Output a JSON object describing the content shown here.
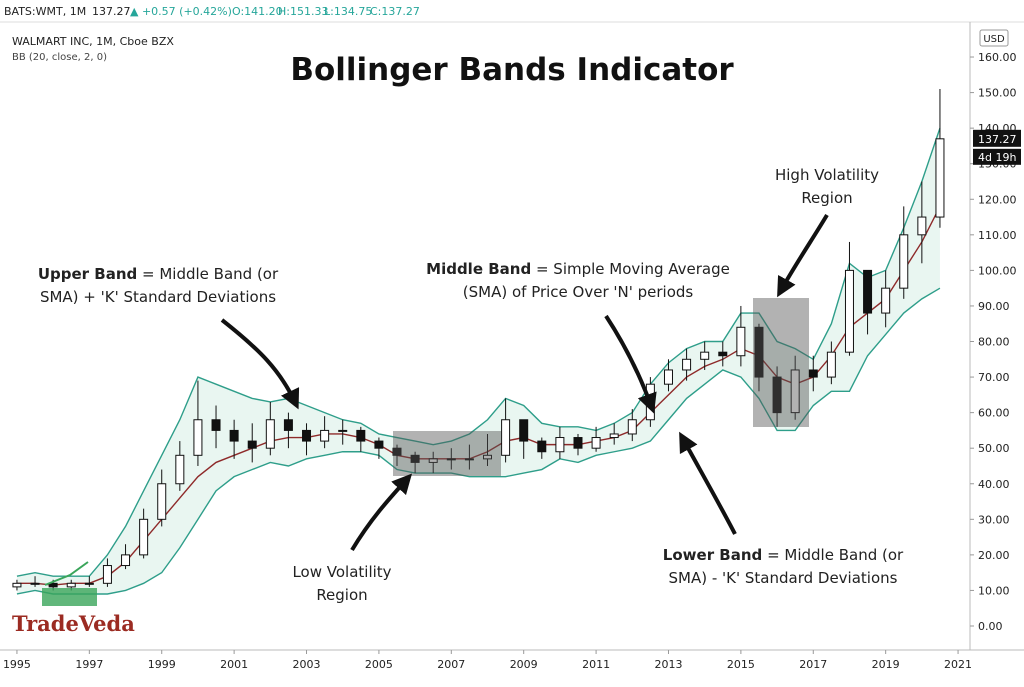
{
  "header": {
    "symbol": "BATS:WMT, 1M",
    "last": "137.27",
    "change": "▲ +0.57 (+0.42%)",
    "ohlc": [
      "O:141.20",
      "H:151.33",
      "L:134.75",
      "C:137.27"
    ]
  },
  "chart_data": {
    "type": "candlestick",
    "title": "Bollinger Bands Indicator",
    "instrument": "WALMART INC, 1M, Cboe BZX",
    "indicator": "BB (20, close, 2, 0)",
    "currency": "USD",
    "price_label": "137.27",
    "countdown": "4d 19h",
    "watermark": "TradeVeda",
    "x": [
      1995,
      1995.5,
      1996,
      1996.5,
      1997,
      1997.5,
      1998,
      1998.5,
      1999,
      1999.5,
      2000,
      2000.5,
      2001,
      2001.5,
      2002,
      2002.5,
      2003,
      2003.5,
      2004,
      2004.5,
      2005,
      2005.5,
      2006,
      2006.5,
      2007,
      2007.5,
      2008,
      2008.5,
      2009,
      2009.5,
      2010,
      2010.5,
      2011,
      2011.5,
      2012,
      2012.5,
      2013,
      2013.5,
      2014,
      2014.5,
      2015,
      2015.5,
      2016,
      2016.5,
      2017,
      2017.5,
      2018,
      2018.5,
      2019,
      2019.5,
      2020,
      2020.5
    ],
    "candles": {
      "open": [
        11,
        12,
        12,
        11,
        12,
        12,
        17,
        20,
        30,
        40,
        48,
        58,
        55,
        52,
        50,
        58,
        55,
        52,
        55,
        55,
        52,
        50,
        48,
        46,
        47,
        47,
        47,
        48,
        58,
        52,
        49,
        53,
        50,
        53,
        54,
        58,
        68,
        72,
        75,
        77,
        76,
        84,
        70,
        60,
        72,
        70,
        77,
        100,
        88,
        95,
        110,
        115
      ],
      "high": [
        13,
        14,
        13,
        13,
        14,
        19,
        23,
        33,
        44,
        52,
        69,
        62,
        58,
        57,
        63,
        60,
        57,
        59,
        58,
        56,
        53,
        51,
        49,
        49,
        50,
        51,
        54,
        64,
        57,
        53,
        56,
        54,
        56,
        57,
        61,
        70,
        75,
        78,
        80,
        80,
        90,
        85,
        73,
        76,
        76,
        80,
        108,
        100,
        100,
        118,
        125,
        151
      ],
      "low": [
        10,
        11,
        10,
        10,
        11,
        11,
        16,
        19,
        28,
        38,
        45,
        50,
        47,
        46,
        48,
        50,
        48,
        50,
        51,
        49,
        47,
        45,
        43,
        43,
        44,
        44,
        45,
        46,
        47,
        47,
        47,
        48,
        49,
        51,
        52,
        56,
        66,
        69,
        72,
        73,
        73,
        66,
        56,
        58,
        66,
        68,
        76,
        82,
        84,
        92,
        102,
        112
      ],
      "close": [
        12,
        12,
        11,
        12,
        12,
        17,
        20,
        30,
        40,
        48,
        58,
        55,
        52,
        50,
        58,
        55,
        52,
        55,
        55,
        52,
        50,
        48,
        46,
        47,
        47,
        47,
        48,
        58,
        52,
        49,
        53,
        50,
        53,
        54,
        58,
        68,
        72,
        75,
        77,
        76,
        84,
        70,
        60,
        72,
        70,
        77,
        100,
        88,
        95,
        110,
        115,
        137
      ],
      "up_color": "#ffffff",
      "down_color": "#111111"
    },
    "bands": {
      "fill": "#e9f6f1",
      "upper": {
        "color": "#2e9e8a",
        "values": [
          14,
          15,
          14,
          14,
          14,
          20,
          28,
          38,
          48,
          58,
          70,
          68,
          66,
          64,
          63,
          64,
          62,
          60,
          58,
          57,
          54,
          53,
          52,
          51,
          52,
          54,
          58,
          64,
          62,
          57,
          56,
          56,
          55,
          57,
          60,
          68,
          74,
          78,
          80,
          80,
          88,
          88,
          80,
          78,
          75,
          85,
          102,
          98,
          100,
          112,
          125,
          140
        ]
      },
      "middle": {
        "color": "#8e2a2a",
        "values": [
          12,
          12,
          11.5,
          12,
          12,
          14,
          18,
          24,
          30,
          36,
          42,
          46,
          48,
          50,
          52,
          53,
          53,
          54,
          54,
          53,
          51,
          48,
          47,
          47,
          47,
          47,
          49,
          52,
          53,
          51,
          51,
          51,
          52,
          53,
          55,
          60,
          65,
          70,
          73,
          75,
          78,
          76,
          70,
          68,
          70,
          76,
          84,
          88,
          92,
          100,
          108,
          118
        ]
      },
      "lower": {
        "color": "#2e9e8a",
        "values": [
          9,
          10,
          9,
          9,
          9,
          9,
          10,
          12,
          15,
          22,
          30,
          38,
          42,
          44,
          46,
          45,
          47,
          48,
          49,
          49,
          48,
          44,
          43,
          43,
          43,
          42,
          42,
          42,
          43,
          44,
          47,
          46,
          48,
          49,
          50,
          52,
          58,
          64,
          68,
          72,
          70,
          64,
          55,
          55,
          62,
          66,
          66,
          76,
          82,
          88,
          92,
          95
        ]
      }
    },
    "xlim": [
      1994.67,
      2021.33
    ],
    "xticks": [
      1995,
      1997,
      1999,
      2001,
      2003,
      2005,
      2007,
      2009,
      2011,
      2013,
      2015,
      2017,
      2019,
      2021
    ],
    "ylim": [
      -6.75,
      167.6
    ],
    "yticks": [
      {
        "value": 0,
        "label": "0.00"
      },
      {
        "value": 10,
        "label": "10.00"
      },
      {
        "value": 20,
        "label": "20.00"
      },
      {
        "value": 30,
        "label": "30.00"
      },
      {
        "value": 40,
        "label": "40.00"
      },
      {
        "value": 50,
        "label": "50.00"
      },
      {
        "value": 60,
        "label": "60.00"
      },
      {
        "value": 70,
        "label": "70.00"
      },
      {
        "value": 80,
        "label": "80.00"
      },
      {
        "value": 90,
        "label": "90.00"
      },
      {
        "value": 100,
        "label": "100.00"
      },
      {
        "value": 110,
        "label": "110.00"
      },
      {
        "value": 120,
        "label": "120.00"
      },
      {
        "value": 130,
        "label": "130.00"
      },
      {
        "value": 140,
        "label": "140.00"
      },
      {
        "value": 150,
        "label": "150.00"
      },
      {
        "value": 160,
        "label": "160.00"
      }
    ],
    "annotations": [
      {
        "bold": "Upper Band",
        "lines": [
          " = Middle Band (or",
          "SMA) + 'K' Standard Deviations"
        ]
      },
      {
        "bold": "Middle Band",
        "lines": [
          " = Simple Moving Average",
          "(SMA) of Price Over 'N' periods"
        ]
      },
      {
        "bold": "Lower Band",
        "lines": [
          " = Middle Band (or",
          "SMA) - 'K' Standard Deviations"
        ]
      },
      {
        "lines": [
          "High Volatility",
          "Region"
        ]
      },
      {
        "lines": [
          "Low Volatility",
          "Region"
        ]
      }
    ]
  }
}
